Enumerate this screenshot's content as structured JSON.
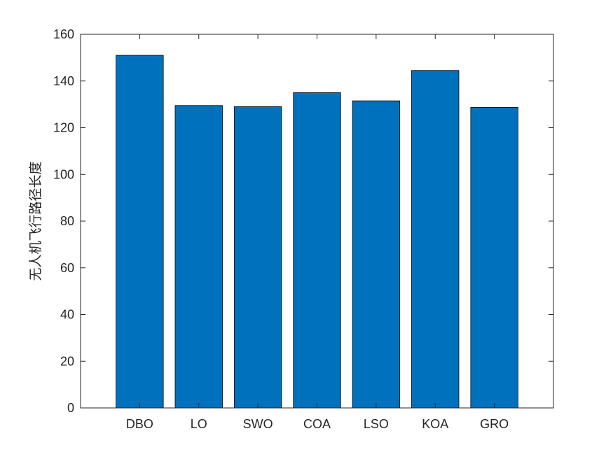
{
  "chart_data": {
    "type": "bar",
    "title": "",
    "xlabel": "",
    "ylabel": "无人机飞行路径长度",
    "categories": [
      "DBO",
      "LO",
      "SWO",
      "COA",
      "LSO",
      "KOA",
      "GRO"
    ],
    "values": [
      151,
      129.5,
      129,
      135,
      131.5,
      144.5,
      128.7
    ],
    "ylim": [
      0,
      160
    ],
    "yticks": [
      0,
      20,
      40,
      60,
      80,
      100,
      120,
      140,
      160
    ],
    "grid": false,
    "bar_color": "#0072BD",
    "bar_edge_color": "#000000",
    "axis_color": "#262626"
  }
}
